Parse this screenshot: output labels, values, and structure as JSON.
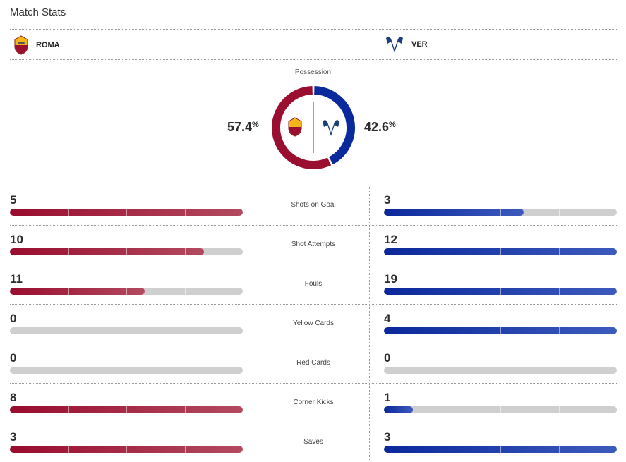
{
  "title": "Match Stats",
  "home": {
    "name": "ROMA",
    "color": "#9a0e2f"
  },
  "away": {
    "name": "VER",
    "color": "#0a2a9c"
  },
  "possession": {
    "label": "Possession",
    "home": 57.4,
    "away": 42.6,
    "home_text": "57.4",
    "away_text": "42.6",
    "unit": "%"
  },
  "stats": [
    {
      "label": "Shots on Goal",
      "home": 5,
      "away": 3
    },
    {
      "label": "Shot Attempts",
      "home": 10,
      "away": 12
    },
    {
      "label": "Fouls",
      "home": 11,
      "away": 19
    },
    {
      "label": "Yellow Cards",
      "home": 0,
      "away": 4
    },
    {
      "label": "Red Cards",
      "home": 0,
      "away": 0
    },
    {
      "label": "Corner Kicks",
      "home": 8,
      "away": 1
    },
    {
      "label": "Saves",
      "home": 3,
      "away": 3
    }
  ]
}
